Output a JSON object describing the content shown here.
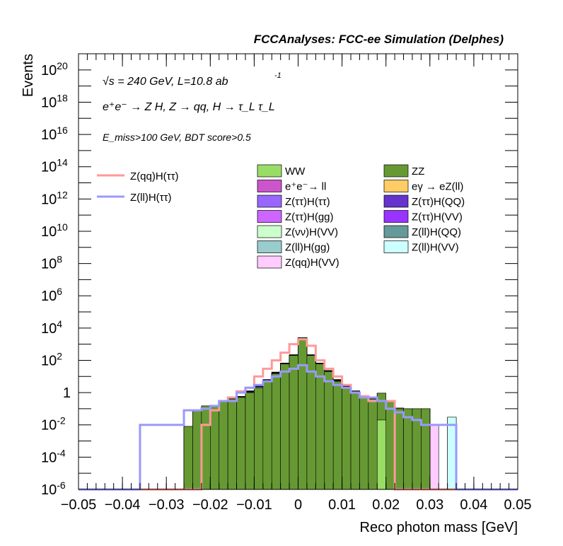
{
  "chart_data": {
    "type": "bar",
    "stacked": true,
    "title": "FCCAnalyses: FCC-ee Simulation (Delphes)",
    "xlabel": "Reco photon mass [GeV]",
    "ylabel": "Events",
    "log_y": true,
    "grid": false,
    "legend_position": "top-right",
    "xlim": [
      -0.05,
      0.05
    ],
    "ylim": [
      1e-06,
      1e+21
    ],
    "bin_edges": [
      -0.05,
      -0.048,
      -0.046,
      -0.044,
      -0.042,
      -0.04,
      -0.038,
      -0.036,
      -0.034,
      -0.032,
      -0.03,
      -0.028,
      -0.026,
      -0.024,
      -0.022,
      -0.02,
      -0.018,
      -0.016,
      -0.014,
      -0.012,
      -0.01,
      -0.008,
      -0.006,
      -0.004,
      -0.002,
      0.0,
      0.002,
      0.004,
      0.006,
      0.008,
      0.01,
      0.012,
      0.014,
      0.016,
      0.018,
      0.02,
      0.022,
      0.024,
      0.026,
      0.028,
      0.03,
      0.032,
      0.034,
      0.036,
      0.038,
      0.04,
      0.042,
      0.044,
      0.046,
      0.048,
      0.05
    ],
    "x_ticks": [
      "−0.05",
      "−0.04",
      "−0.03",
      "−0.02",
      "−0.01",
      "0",
      "0.01",
      "0.02",
      "0.03",
      "0.04",
      "0.05"
    ],
    "y_ticks": [
      {
        "base": "10",
        "exp": "20"
      },
      {
        "base": "10",
        "exp": "18"
      },
      {
        "base": "10",
        "exp": "16"
      },
      {
        "base": "10",
        "exp": "14"
      },
      {
        "base": "10",
        "exp": "12"
      },
      {
        "base": "10",
        "exp": "10"
      },
      {
        "base": "10",
        "exp": "8"
      },
      {
        "base": "10",
        "exp": "6"
      },
      {
        "base": "10",
        "exp": "4"
      },
      {
        "base": "10",
        "exp": "2"
      },
      {
        "base": "1",
        "exp": ""
      },
      {
        "base": "10",
        "exp": "-2"
      },
      {
        "base": "10",
        "exp": "-4"
      },
      {
        "base": "10",
        "exp": "-6"
      }
    ],
    "annotations": {
      "energy_line": "√s = 240 GeV, L=10.8 ab",
      "lumi_exp": "-1",
      "process": "e⁺e⁻ → Z H, Z → qq, H → τ_L τ_L",
      "cuts": "E_miss>100 GeV, BDT score>0.5"
    },
    "stacked_totals": [
      0,
      0,
      0,
      0,
      0,
      0,
      0,
      0,
      0,
      0,
      0,
      0,
      0.01,
      0.08,
      0.15,
      0.15,
      0.3,
      0.4,
      0.6,
      1.5,
      3,
      10,
      30,
      100,
      300,
      3000,
      300,
      100,
      40,
      10,
      4,
      1.5,
      0.8,
      0.6,
      0.9,
      0.3,
      0.1,
      0.1,
      0.1,
      0.1,
      0,
      0,
      0,
      0,
      0,
      0,
      0,
      0,
      0,
      0
    ],
    "stack_series": [
      {
        "name": "WW",
        "color": "#99dd66",
        "values": [
          0,
          0,
          0,
          0,
          0,
          0,
          0,
          0,
          0,
          0,
          0,
          0,
          0,
          0,
          0,
          0,
          0,
          0,
          0,
          0,
          0,
          0,
          0,
          0,
          0,
          0,
          0,
          0,
          0,
          0,
          0,
          0,
          0,
          0,
          0.02,
          0,
          0,
          0,
          0,
          0,
          0,
          0,
          0,
          0,
          0,
          0,
          0,
          0,
          0,
          0
        ]
      },
      {
        "name": "ZZ",
        "color": "#669933",
        "values": [
          0,
          0,
          0,
          0,
          0,
          0,
          0,
          0,
          0,
          0,
          0,
          0,
          0.008,
          0.08,
          0.15,
          0.15,
          0.3,
          0.4,
          0.5,
          1.0,
          2.0,
          5,
          15,
          60,
          200,
          2500,
          200,
          60,
          20,
          5,
          2,
          1.0,
          0.5,
          0.4,
          0.9,
          0.3,
          0.1,
          0.1,
          0.1,
          0.1,
          0,
          0,
          0,
          0,
          0,
          0,
          0,
          0,
          0,
          0
        ]
      },
      {
        "name": "e⁺e⁻→ ll",
        "color": "#cc55cc",
        "values": [
          0,
          0,
          0,
          0,
          0,
          0,
          0,
          0,
          0,
          0,
          0,
          0,
          0,
          0,
          0,
          0,
          0,
          0,
          0,
          0,
          0,
          0,
          0,
          0,
          0,
          0,
          0,
          0,
          0,
          0,
          0,
          0,
          0,
          0,
          0,
          0,
          0,
          0,
          0,
          0,
          0,
          0,
          0,
          0,
          0,
          0,
          0,
          0,
          0,
          0
        ]
      },
      {
        "name": "eγ → eZ(ll)",
        "color": "#ffcc66",
        "values": [
          0,
          0,
          0,
          0,
          0,
          0,
          0,
          0,
          0,
          0,
          0,
          0,
          0,
          0,
          0,
          0,
          0,
          0,
          0,
          0,
          0,
          0,
          0,
          0.005,
          0.02,
          0.05,
          0.03,
          0.01,
          0,
          0,
          0,
          0,
          0,
          0,
          0,
          0,
          0,
          0,
          0,
          0,
          0,
          0,
          0,
          0,
          0,
          0,
          0,
          0,
          0,
          0
        ]
      },
      {
        "name": "Z(ττ)H(ττ)",
        "color": "#9966ff",
        "values": [
          0,
          0,
          0,
          0,
          0,
          0,
          0,
          0,
          0,
          0,
          0,
          0,
          0,
          0,
          0,
          0.01,
          0.02,
          0.03,
          0.05,
          0.1,
          0.3,
          0.5,
          1,
          2,
          5,
          20,
          5,
          2,
          1,
          0.5,
          0.3,
          0.1,
          0.05,
          0.03,
          0,
          0,
          0,
          0,
          0,
          0,
          0,
          0,
          0,
          0,
          0,
          0,
          0,
          0,
          0,
          0
        ]
      },
      {
        "name": "Z(ττ)H(QQ)",
        "color": "#6633cc",
        "values": [
          0,
          0,
          0,
          0,
          0,
          0,
          0,
          0,
          0,
          0,
          0,
          0,
          0,
          0,
          0,
          0,
          0,
          0,
          0,
          0,
          0.05,
          0.1,
          0.5,
          1,
          3,
          10,
          3,
          1,
          0.5,
          0.1,
          0.05,
          0,
          0,
          0,
          0,
          0,
          0,
          0,
          0,
          0,
          0,
          0,
          0,
          0,
          0,
          0,
          0,
          0,
          0,
          0
        ]
      },
      {
        "name": "Z(ττ)H(gg)",
        "color": "#cc66ff",
        "values": [
          0,
          0,
          0,
          0,
          0,
          0,
          0,
          0,
          0,
          0,
          0,
          0,
          0,
          0,
          0,
          0,
          0,
          0.01,
          0.02,
          0.05,
          0.1,
          0.2,
          0.5,
          1,
          2,
          5,
          2,
          1,
          0.5,
          0.2,
          0.1,
          0.05,
          0.02,
          0,
          0,
          0,
          0,
          0,
          0,
          0,
          0,
          0,
          0,
          0,
          0,
          0,
          0,
          0,
          0,
          0
        ]
      },
      {
        "name": "Z(ττ)H(VV)",
        "color": "#9933ff",
        "values": [
          0,
          0,
          0,
          0,
          0,
          0,
          0,
          0,
          0,
          0,
          0,
          0,
          0,
          0,
          0,
          0,
          0,
          0,
          0,
          0.05,
          0.1,
          0.2,
          0.5,
          1,
          2,
          5,
          2,
          1,
          0.5,
          0.2,
          0.1,
          0.05,
          0,
          0,
          0,
          0,
          0,
          0,
          0,
          0,
          0,
          0,
          0,
          0,
          0,
          0,
          0,
          0,
          0,
          0
        ]
      },
      {
        "name": "Z(νν)H(VV)",
        "color": "#ccffcc",
        "values": [
          0,
          0,
          0,
          0,
          0,
          0,
          0,
          0,
          0,
          0,
          0,
          0,
          0,
          0,
          0,
          0,
          0,
          0,
          0,
          0,
          0,
          0,
          0,
          0,
          0,
          0,
          0,
          0,
          0,
          0,
          0,
          0,
          0,
          0,
          0,
          0.01,
          0.01,
          0,
          0,
          0,
          0,
          0,
          0,
          0,
          0,
          0,
          0,
          0,
          0,
          0
        ]
      },
      {
        "name": "Z(ll)H(QQ)",
        "color": "#669999",
        "values": [
          0,
          0,
          0,
          0,
          0,
          0,
          0,
          0,
          0,
          0,
          0,
          0,
          0,
          0,
          0,
          0,
          0,
          0,
          0,
          0,
          0,
          0,
          0,
          0,
          0,
          0,
          0,
          0,
          0,
          0,
          0,
          0,
          0,
          0,
          0,
          0,
          0,
          0,
          0,
          0,
          0,
          0,
          0,
          0,
          0,
          0,
          0,
          0,
          0,
          0
        ]
      },
      {
        "name": "Z(ll)H(gg)",
        "color": "#99cccc",
        "values": [
          0,
          0,
          0,
          0,
          0,
          0,
          0,
          0,
          0,
          0,
          0,
          0,
          0,
          0,
          0,
          0,
          0,
          0,
          0,
          0,
          0,
          0.05,
          0.1,
          0.2,
          0.5,
          1,
          0.5,
          0.2,
          0.1,
          0.05,
          0,
          0,
          0,
          0,
          0,
          0,
          0,
          0,
          0,
          0,
          0,
          0,
          0,
          0,
          0,
          0,
          0,
          0,
          0,
          0
        ]
      },
      {
        "name": "Z(ll)H(VV)",
        "color": "#ccffff",
        "values": [
          0,
          0,
          0,
          0,
          0,
          0,
          0,
          0,
          0,
          0,
          0,
          0,
          0,
          0,
          0,
          0,
          0,
          0,
          0,
          0.1,
          0.2,
          0.5,
          1,
          3,
          10,
          30,
          10,
          3,
          1,
          0.5,
          0.2,
          0.1,
          0,
          0,
          0,
          0,
          0,
          0,
          0,
          0,
          0,
          0,
          0.03,
          0,
          0,
          0,
          0,
          0,
          0,
          0
        ]
      },
      {
        "name": "Z(qq)H(VV)",
        "color": "#ffccff",
        "values": [
          0,
          0,
          0,
          0,
          0,
          0,
          0,
          0,
          0,
          0,
          0,
          0,
          0,
          0,
          0,
          0,
          0,
          0,
          0,
          0,
          0,
          0,
          0,
          0,
          0,
          0,
          0,
          0,
          0,
          0,
          0,
          0,
          0,
          0,
          0,
          0,
          0,
          0,
          0,
          0,
          0.01,
          0,
          0,
          0,
          0,
          0,
          0,
          0,
          0,
          0
        ]
      }
    ],
    "signal_series": [
      {
        "name": "Z(qq)H(ττ)",
        "color": "#ff9999",
        "values": [
          0,
          0,
          0,
          0,
          0,
          0,
          0,
          0,
          0,
          0,
          0,
          0,
          0,
          0,
          0.01,
          0.08,
          0.3,
          0.5,
          1.2,
          2,
          10,
          30,
          100,
          300,
          1000,
          2000,
          800,
          100,
          30,
          10,
          3,
          1,
          0.6,
          0.3,
          0.3,
          0.3,
          0,
          0,
          0,
          0,
          0,
          0,
          0,
          0,
          0,
          0,
          0,
          0,
          0,
          0
        ]
      },
      {
        "name": "Z(ll)H(ττ)",
        "color": "#9999ff",
        "values": [
          0,
          0,
          0,
          0,
          0,
          0,
          0,
          0.01,
          0.01,
          0.01,
          0.01,
          0.01,
          0.08,
          0.08,
          0.1,
          0.15,
          0.3,
          0.3,
          1,
          2,
          3,
          5,
          10,
          20,
          30,
          50,
          20,
          10,
          5,
          3,
          2,
          1,
          0.5,
          0.5,
          0.3,
          0.1,
          0.06,
          0.03,
          0.02,
          0.01,
          0.01,
          0.01,
          0.01,
          1e-06,
          1e-06,
          1e-06,
          1e-06,
          1e-06,
          1e-06,
          1e-06
        ]
      }
    ]
  }
}
